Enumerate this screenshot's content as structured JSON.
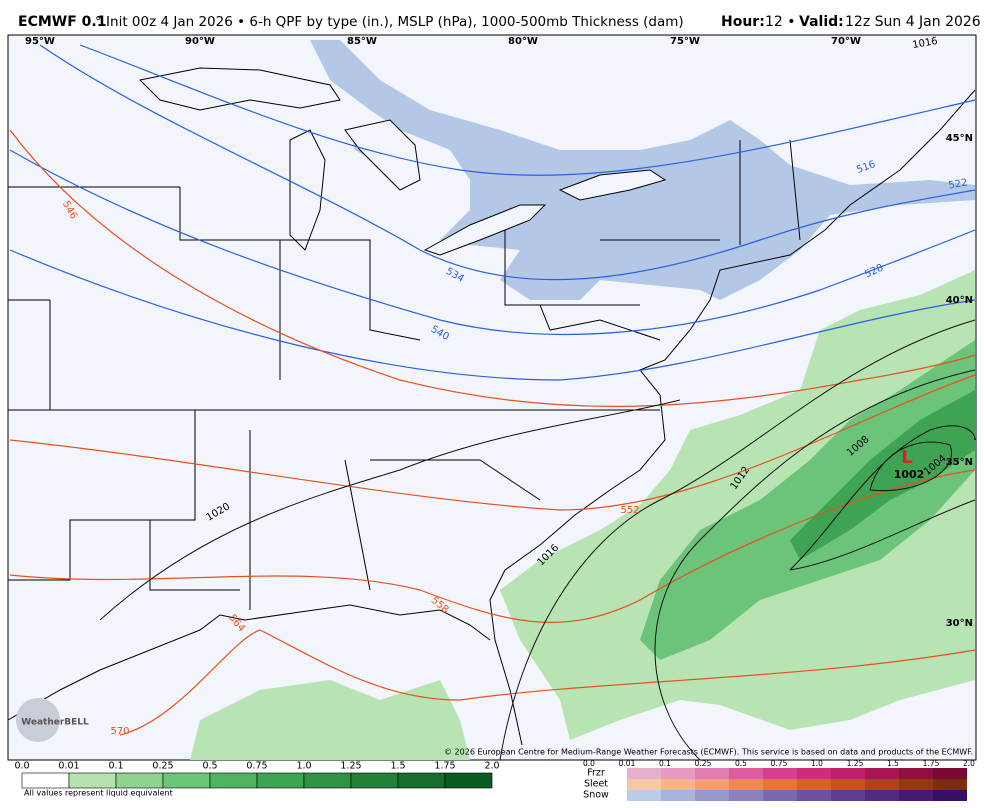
{
  "header": {
    "model": "ECMWF 0.1",
    "description": "° Init 00z 4 Jan 2026 • 6-h QPF by type (in.), MSLP (hPa), 1000-500mb Thickness (dam)",
    "hour_label": "Hour:",
    "hour": "12 •",
    "valid_label": "Valid:",
    "valid": "12z Sun 4 Jan 2026"
  },
  "map": {
    "longitudes": [
      "95°W",
      "90°W",
      "85°W",
      "80°W",
      "75°W",
      "70°W"
    ],
    "latitudes": [
      "45°N",
      "40°N",
      "35°N",
      "30°N"
    ],
    "thickness_labels": [
      "546",
      "534",
      "540",
      "516",
      "522",
      "528",
      "552",
      "558",
      "564",
      "570"
    ],
    "pressure_labels": [
      "1016",
      "1020",
      "1016",
      "1012",
      "1008",
      "1004"
    ],
    "low": {
      "symbol": "L",
      "pressure": "1002"
    },
    "logo": "WeatherBELL",
    "copyright": "© 2026 European Centre for Medium-Range Weather Forecasts (ECMWF). This service is based on data and products of the ECMWF."
  },
  "legend": {
    "rain_labels": [
      "0.0",
      "0.01",
      "0.1",
      "0.25",
      "0.5",
      "0.75",
      "1.0",
      "1.25",
      "1.5",
      "1.75",
      "2.0"
    ],
    "note": "All values represent liquid equivalent",
    "types": [
      "Frzr",
      "Sleet",
      "Snow"
    ],
    "type_labels": [
      "0.0",
      "0.01",
      "0.1",
      "0.25",
      "0.5",
      "0.75",
      "1.0",
      "1.25",
      "1.5",
      "1.75",
      "2.0"
    ]
  }
}
